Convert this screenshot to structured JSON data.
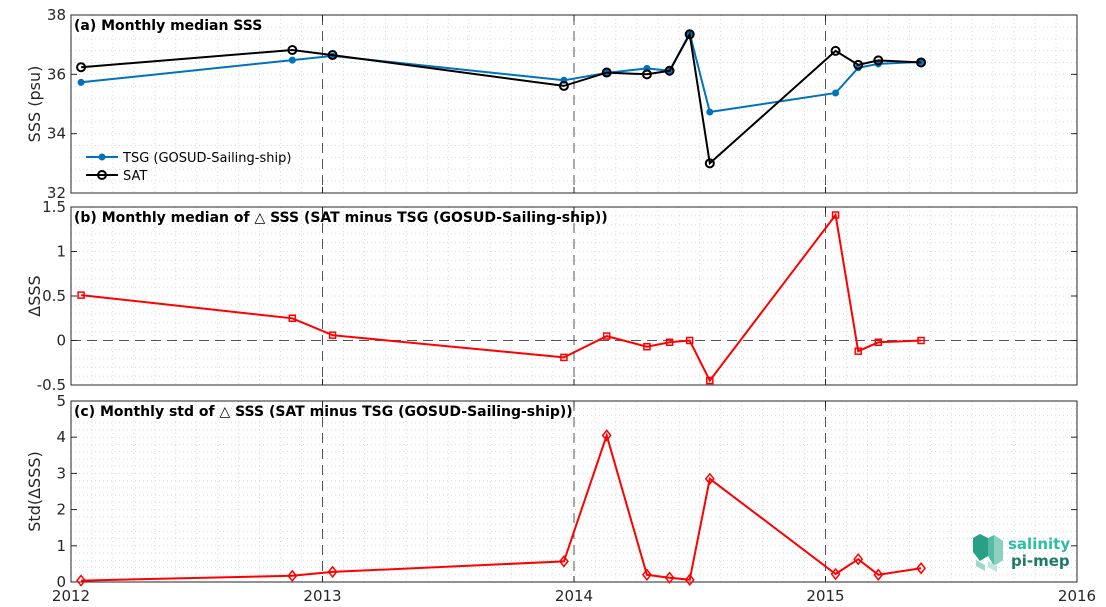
{
  "chart_data": [
    {
      "type": "line",
      "title": "(a) Monthly median SSS",
      "ylabel": "SSS (psu)",
      "xlim": [
        2012,
        2016
      ],
      "ylim": [
        32,
        38
      ],
      "yticks": [
        "32",
        "34",
        "36",
        "38"
      ],
      "legend_position": "bottom-left",
      "series": [
        {
          "name": "TSG (GOSUD-Sailing-ship)",
          "color": "#0072bd",
          "marker": "dot",
          "x": [
            2012.04,
            2012.88,
            2013.04,
            2013.96,
            2014.13,
            2014.29,
            2014.38,
            2014.46,
            2014.54,
            2015.04,
            2015.13,
            2015.21,
            2015.38
          ],
          "y": [
            35.73,
            36.48,
            36.62,
            35.8,
            36.05,
            36.2,
            36.12,
            37.38,
            34.73,
            35.37,
            36.22,
            36.35,
            36.42
          ]
        },
        {
          "name": "SAT",
          "color": "#000000",
          "marker": "circle",
          "x": [
            2012.04,
            2012.88,
            2013.04,
            2013.96,
            2014.13,
            2014.29,
            2014.38,
            2014.46,
            2014.54,
            2015.04,
            2015.13,
            2015.21,
            2015.38
          ],
          "y": [
            36.24,
            36.82,
            36.65,
            35.61,
            36.06,
            36.0,
            36.12,
            37.35,
            33.0,
            36.79,
            36.32,
            36.47,
            36.4
          ]
        }
      ]
    },
    {
      "type": "line",
      "title": "(b) Monthly median of △ SSS (SAT minus TSG (GOSUD-Sailing-ship))",
      "ylabel": "ΔSSS",
      "xlim": [
        2012,
        2016
      ],
      "ylim": [
        -0.5,
        1.5
      ],
      "yticks": [
        "-0.5",
        "0",
        "0.5",
        "1",
        "1.5"
      ],
      "reference_line": 0,
      "series": [
        {
          "color": "#ff0000",
          "marker": "square",
          "x": [
            2012.04,
            2012.88,
            2013.04,
            2013.96,
            2014.13,
            2014.29,
            2014.38,
            2014.46,
            2014.54,
            2015.04,
            2015.13,
            2015.21,
            2015.38
          ],
          "y": [
            0.51,
            0.25,
            0.06,
            -0.19,
            0.05,
            -0.07,
            -0.02,
            0.0,
            -0.45,
            1.41,
            -0.12,
            -0.02,
            0.0
          ]
        }
      ]
    },
    {
      "type": "line",
      "title": "(c) Monthly std of △ SSS (SAT minus TSG (GOSUD-Sailing-ship))",
      "ylabel": "Std(ΔSSS)",
      "xlim": [
        2012,
        2016
      ],
      "ylim": [
        0,
        5
      ],
      "yticks": [
        "0",
        "1",
        "2",
        "3",
        "4",
        "5"
      ],
      "xticks": [
        "2012",
        "2013",
        "2014",
        "2015",
        "2016"
      ],
      "series": [
        {
          "color": "#ff0000",
          "marker": "diamond",
          "x": [
            2012.04,
            2012.88,
            2013.04,
            2013.96,
            2014.13,
            2014.29,
            2014.38,
            2014.46,
            2014.54,
            2015.04,
            2015.13,
            2015.21,
            2015.38
          ],
          "y": [
            0.04,
            0.17,
            0.28,
            0.57,
            4.05,
            0.2,
            0.12,
            0.06,
            2.85,
            0.22,
            0.63,
            0.2,
            0.38
          ]
        }
      ]
    }
  ],
  "logo": {
    "line1": "salinity",
    "line2": "pi-mep",
    "icon": "salinity-wave-icon",
    "colors": [
      "#1a7f6f",
      "#8ad1c2"
    ]
  }
}
